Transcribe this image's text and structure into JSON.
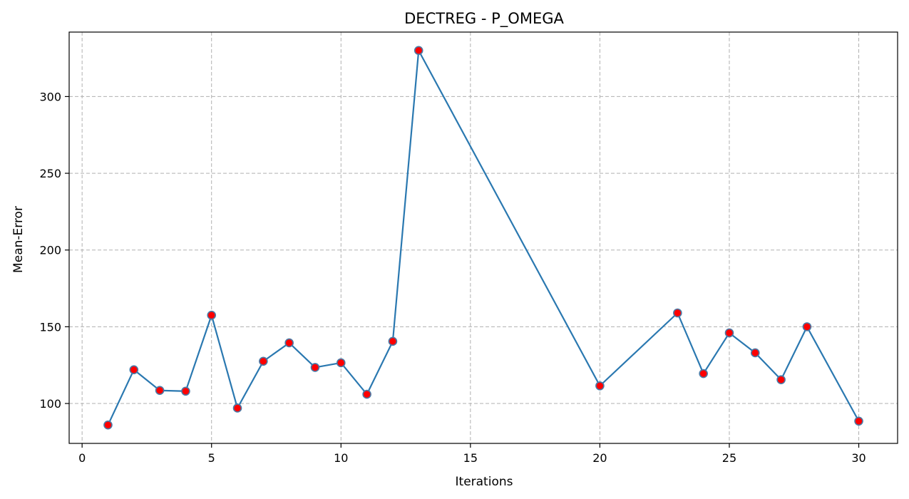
{
  "chart_data": {
    "type": "line",
    "title": "DECTREG - P_OMEGA",
    "xlabel": "Iterations",
    "ylabel": "Mean-Error",
    "xlim": [
      -0.5,
      31.5
    ],
    "ylim": [
      74,
      342
    ],
    "x_ticks": [
      0,
      5,
      10,
      15,
      20,
      25,
      30
    ],
    "y_ticks": [
      100,
      150,
      200,
      250,
      300
    ],
    "grid": true,
    "line_color": "#2a78b0",
    "marker_fill": "#ff0000",
    "marker_edge": "#4a7aa6",
    "series": [
      {
        "x": [
          1,
          2,
          3,
          4,
          5,
          6,
          7,
          8,
          9,
          10,
          11,
          12,
          13,
          20,
          23,
          24,
          25,
          26,
          27,
          28,
          30
        ],
        "values": [
          86,
          122,
          108.5,
          108,
          157.5,
          97,
          127.5,
          139.5,
          123.5,
          126.5,
          106,
          140.5,
          330,
          111.5,
          159,
          119.5,
          146,
          133,
          115.5,
          150,
          88.5
        ]
      }
    ]
  }
}
